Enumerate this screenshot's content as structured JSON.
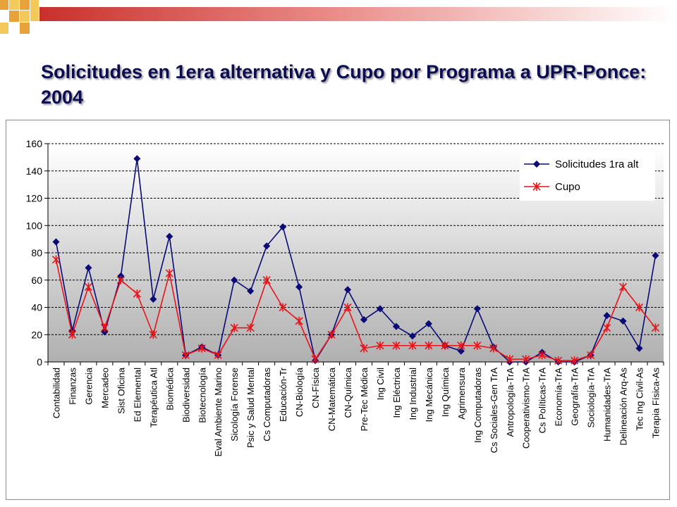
{
  "slide": {
    "title": "Solicitudes en 1era alternativa y Cupo por Programa a UPR-Ponce:  2004",
    "colors": {
      "title": "#0c0c52",
      "series1": "#0a0a78",
      "series2": "#e8141a",
      "plot_gradient_top": "#ffffff",
      "plot_gradient_bottom": "#b0b0b0",
      "band_orange": "#e8a23a",
      "band_yellow": "#f2c95a",
      "band_red": "#c9302c"
    }
  },
  "chart_data": {
    "type": "line",
    "title": "",
    "xlabel": "",
    "ylabel": "",
    "ylim": [
      0,
      160
    ],
    "yticks": [
      0,
      20,
      40,
      60,
      80,
      100,
      120,
      140,
      160
    ],
    "grid": true,
    "legend_position": "top-right",
    "categories": [
      "Contabilidad",
      "Finanzas",
      "Gerencia",
      "Mercadeo",
      "Sist Oficina",
      "Ed Elemental",
      "Terapéutica Atl",
      "Biomédica",
      "Biodiversidad",
      "Biotecnología",
      "Eval Ambiente Marino",
      "Sicología Forense",
      "Psic y Salud Mental",
      "Cs Computadoras",
      "Educación-Tr",
      "CN-Biología",
      "CN-Física",
      "CN-Matemática",
      "CN-Química",
      "Pre-Tec Médica",
      "Ing Civil",
      "Ing Eléctrica",
      "Ing Industrial",
      "Ing Mecánica",
      "Ing Química",
      "Agrimensura",
      "Ing Computadoras",
      "Cs Sociales-Gen TrA",
      "Antropología-TrA",
      "Cooperativismo-TrA",
      "Cs Políticas-TrA",
      "Economía-TrA",
      "Geografía-TrA",
      "Sociología-TrA",
      "Humanidades-TrA",
      "Delineación Arq-As",
      "Tec Ing Civil-As",
      "Terapia Física-As"
    ],
    "series": [
      {
        "name": "Solicitudes 1ra alt",
        "marker": "diamond",
        "values": [
          88,
          23,
          69,
          22,
          63,
          149,
          46,
          92,
          5,
          11,
          5,
          60,
          52,
          85,
          99,
          55,
          1,
          20,
          53,
          31,
          39,
          26,
          19,
          28,
          12,
          8,
          39,
          11,
          0,
          0,
          7,
          0,
          0,
          5,
          34,
          30,
          10,
          78
        ]
      },
      {
        "name": "Cupo",
        "marker": "asterisk",
        "values": [
          75,
          20,
          55,
          25,
          60,
          50,
          20,
          65,
          5,
          10,
          5,
          25,
          25,
          60,
          40,
          30,
          2,
          20,
          40,
          10,
          12,
          12,
          12,
          12,
          12,
          12,
          12,
          10,
          2,
          2,
          5,
          1,
          1,
          5,
          25,
          55,
          40,
          25
        ]
      }
    ]
  }
}
